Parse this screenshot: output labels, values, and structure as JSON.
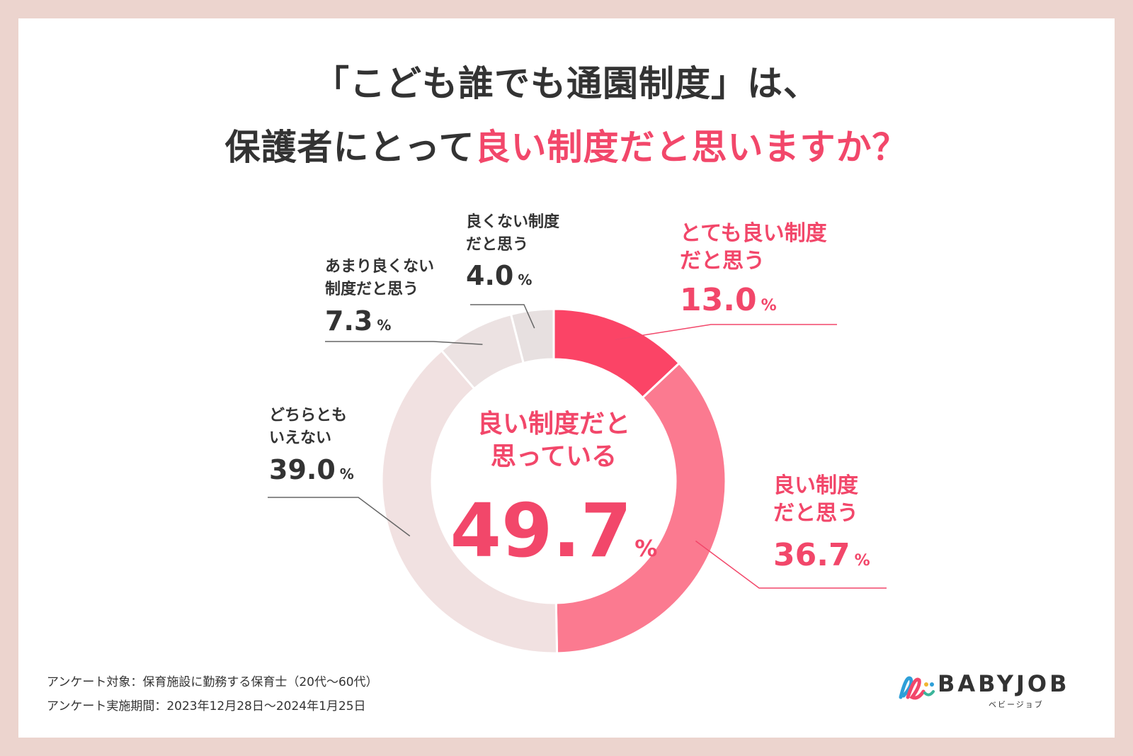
{
  "title": {
    "line1": "「こども誰でも通園制度」は、",
    "line2_plain": "保護者にとって",
    "line2_accent": "良い制度だと思いますか？"
  },
  "colors": {
    "accent": "#f2476a",
    "very_good": "#fb4466",
    "good": "#fb7a90",
    "neutral": "#f1e1e1",
    "not_very_good": "#ece2e2",
    "not_good": "#e7e0e0",
    "text": "#333333"
  },
  "chart_data": {
    "type": "pie",
    "title": "「こども誰でも通園制度」は、保護者にとって良い制度だと思いますか？",
    "unit": "%",
    "slices": [
      {
        "key": "very_good",
        "label_line1": "とても良い制度",
        "label_line2": "だと思う",
        "value": 13.0,
        "value_text": "13.0",
        "color": "#fb4466",
        "highlight": true
      },
      {
        "key": "good",
        "label_line1": "良い制度",
        "label_line2": "だと思う",
        "value": 36.7,
        "value_text": "36.7",
        "color": "#fb7a90",
        "highlight": true
      },
      {
        "key": "neutral",
        "label_line1": "どちらとも",
        "label_line2": "いえない",
        "value": 39.0,
        "value_text": "39.0",
        "color": "#f1e1e1",
        "highlight": false
      },
      {
        "key": "not_very_good",
        "label_line1": "あまり良くない",
        "label_line2": "制度だと思う",
        "value": 7.3,
        "value_text": "7.3",
        "color": "#ece2e2",
        "highlight": false
      },
      {
        "key": "not_good",
        "label_line1": "良くない制度",
        "label_line2": "だと思う",
        "value": 4.0,
        "value_text": "4.0",
        "color": "#e7e0e0",
        "highlight": false
      }
    ],
    "center": {
      "line1": "良い制度だと",
      "line2": "思っている",
      "value_text": "49.7",
      "unit": "%"
    }
  },
  "footer": {
    "line1": "アンケート対象：保育施設に勤務する保育士（20代〜60代）",
    "line2": "アンケート実施期間：2023年12月28日〜2024年1月25日"
  },
  "logo": {
    "name": "BABYJOB",
    "kana": "ベビージョブ"
  }
}
